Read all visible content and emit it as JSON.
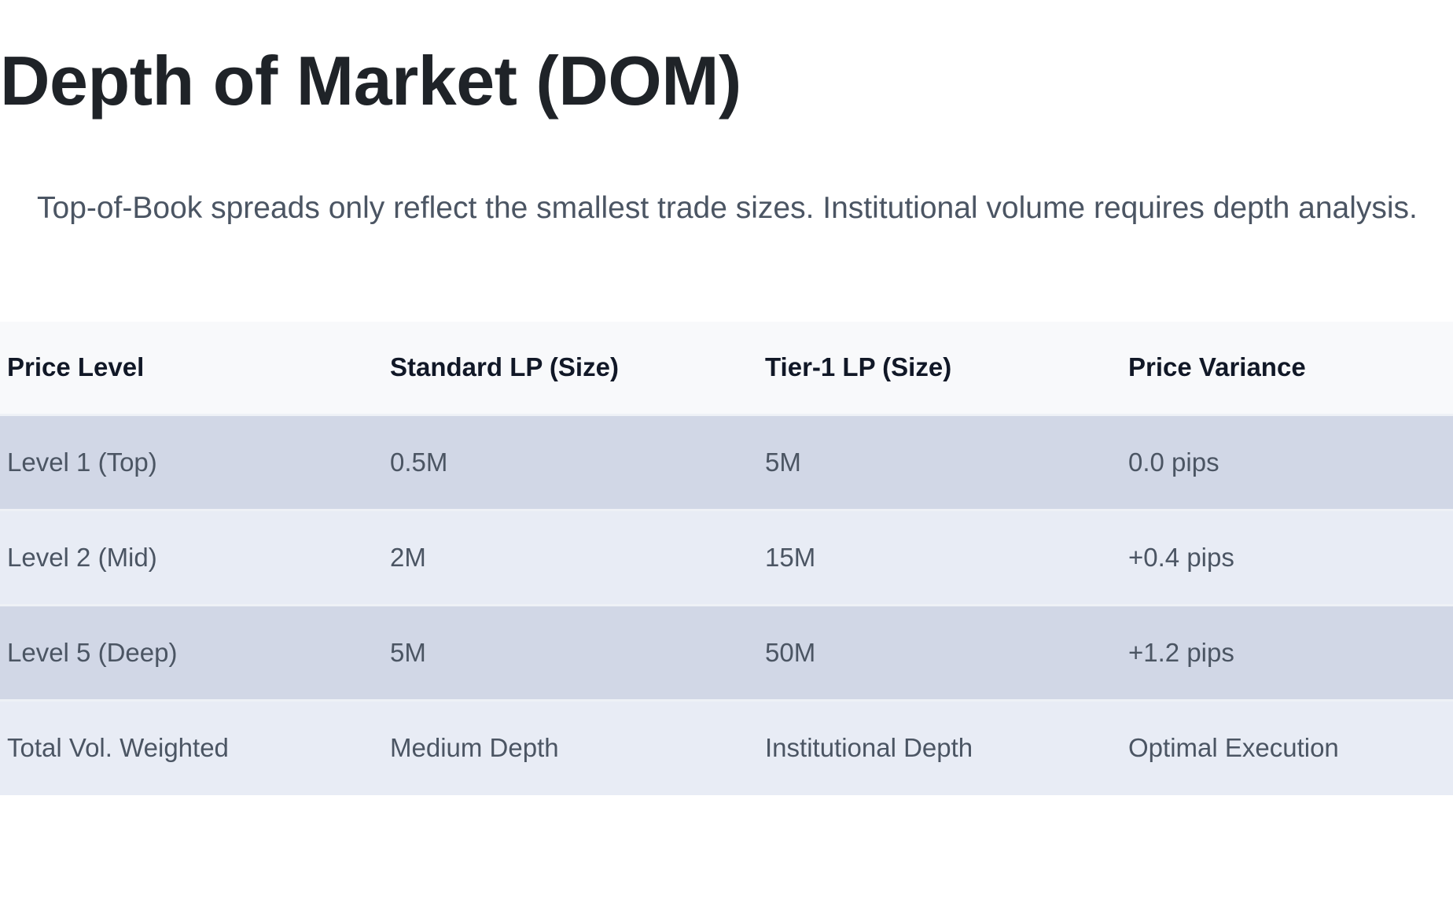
{
  "title": "Depth of Market (DOM)",
  "intro": "Top-of-Book spreads only reflect the smallest trade sizes. Institutional volume requires depth analysis.",
  "table": {
    "headers": [
      "Price Level",
      "Standard LP (Size)",
      "Tier-1 LP (Size)",
      "Price Variance"
    ],
    "rows": [
      [
        "Level 1 (Top)",
        "0.5M",
        "5M",
        "0.0 pips"
      ],
      [
        "Level 2 (Mid)",
        "2M",
        "15M",
        "+0.4 pips"
      ],
      [
        "Level 5 (Deep)",
        "5M",
        "50M",
        "+1.2 pips"
      ],
      [
        "Total Vol. Weighted",
        "Medium Depth",
        "Institutional Depth",
        "Optimal Execution"
      ]
    ]
  },
  "colors": {
    "header_bg": "#f8f9fb",
    "row_odd": "#d1d7e6",
    "row_even": "#e8ecf5",
    "text": "#4b5563"
  }
}
